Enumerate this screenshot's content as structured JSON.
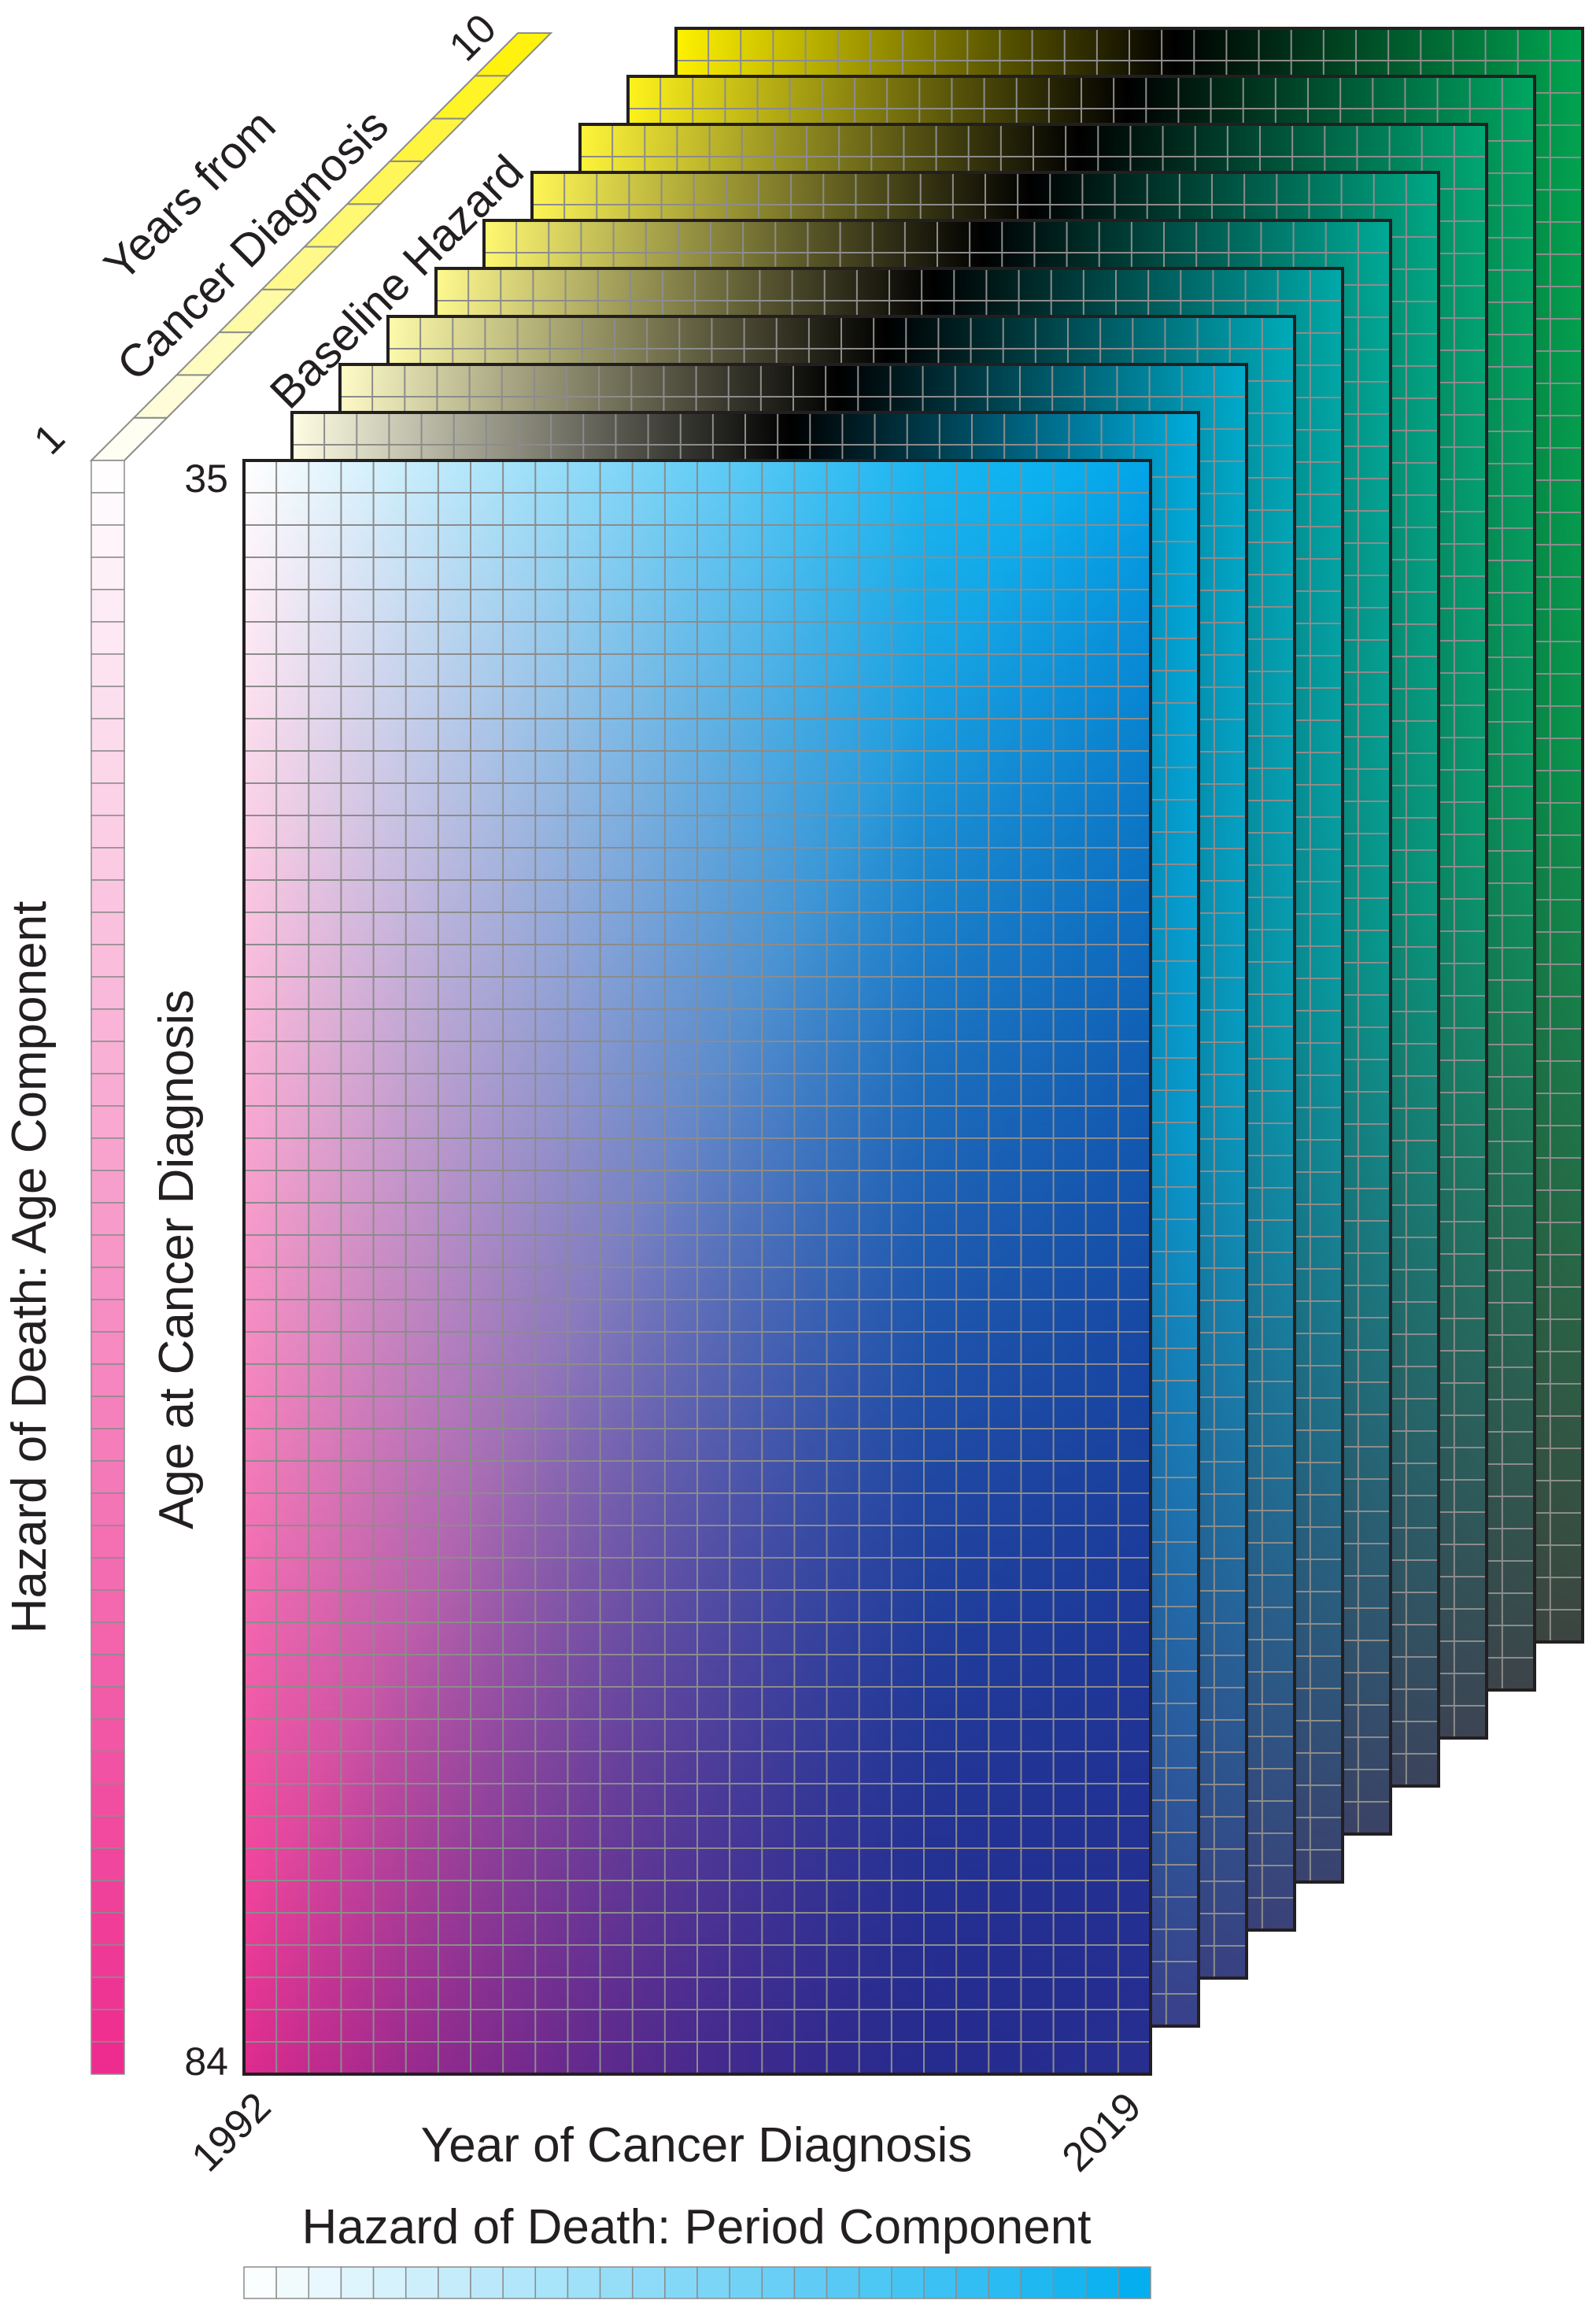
{
  "labels": {
    "years_from_diagnosis_line1": "Years from",
    "years_from_diagnosis_line2": "Cancer Diagnosis",
    "baseline_hazard": "Baseline Hazard",
    "age_component": "Hazard of Death: Age Component",
    "age_axis": "Age at Cancer Diagnosis",
    "year_axis": "Year of Cancer Diagnosis",
    "period_component": "Hazard of Death: Period Component"
  },
  "ticks": {
    "years_from_start": "1",
    "years_from_end": "10",
    "age_start": "35",
    "age_end": "84",
    "year_start": "1992",
    "year_end": "2019"
  },
  "structure": {
    "layers": 10,
    "age_cells": 50,
    "year_cells": 28
  },
  "colors": {
    "age_low": "#ffffff",
    "age_high": "#ee2a8e",
    "period_low": "#ffffff",
    "period_high": "#00aeef",
    "baseline_low": "#ffffff",
    "baseline_high": "#fff200",
    "back_layer_top_right": "#00a651",
    "back_layer_bottom": "#404040",
    "front_bottom_right": "#3b3a8f",
    "grid_line": "#8c8c8c",
    "frame": "#231f20"
  }
}
